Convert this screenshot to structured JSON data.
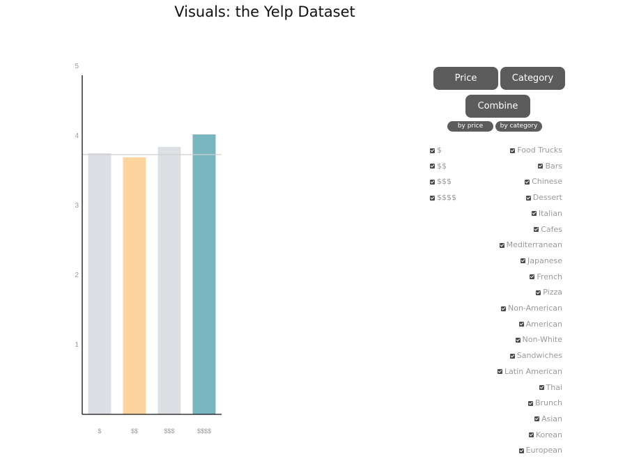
{
  "page": {
    "title": "Visuals: the Yelp Dataset"
  },
  "chart_data": {
    "type": "bar",
    "title": "",
    "xlabel": "",
    "ylabel": "",
    "categories": [
      "$",
      "$$",
      "$$$",
      "$$$$"
    ],
    "values": [
      3.75,
      3.69,
      3.84,
      4.02
    ],
    "colors": [
      "#dcdfe3",
      "#fed49e",
      "#dcdfe3",
      "#7ab6c0"
    ],
    "ylim": [
      0,
      5
    ],
    "yticks": [
      1,
      2,
      3,
      4,
      5
    ],
    "reference_line": 3.73,
    "grid": false
  },
  "controls": {
    "price_label": "Price",
    "category_label": "Category",
    "combine_label": "Combine",
    "by_price_label": "by price",
    "by_category_label": "by category"
  },
  "price_filters": [
    "$",
    "$$",
    "$$$",
    "$$$$"
  ],
  "category_filters": [
    "Food Trucks",
    "Bars",
    "Chinese",
    "Dessert",
    "Italian",
    "Cafes",
    "Mediterranean",
    "Japanese",
    "French",
    "Pizza",
    "Non-American",
    "American",
    "Non-White",
    "Sandwiches",
    "Latin American",
    "Thai",
    "Brunch",
    "Asian",
    "Korean",
    "European"
  ]
}
